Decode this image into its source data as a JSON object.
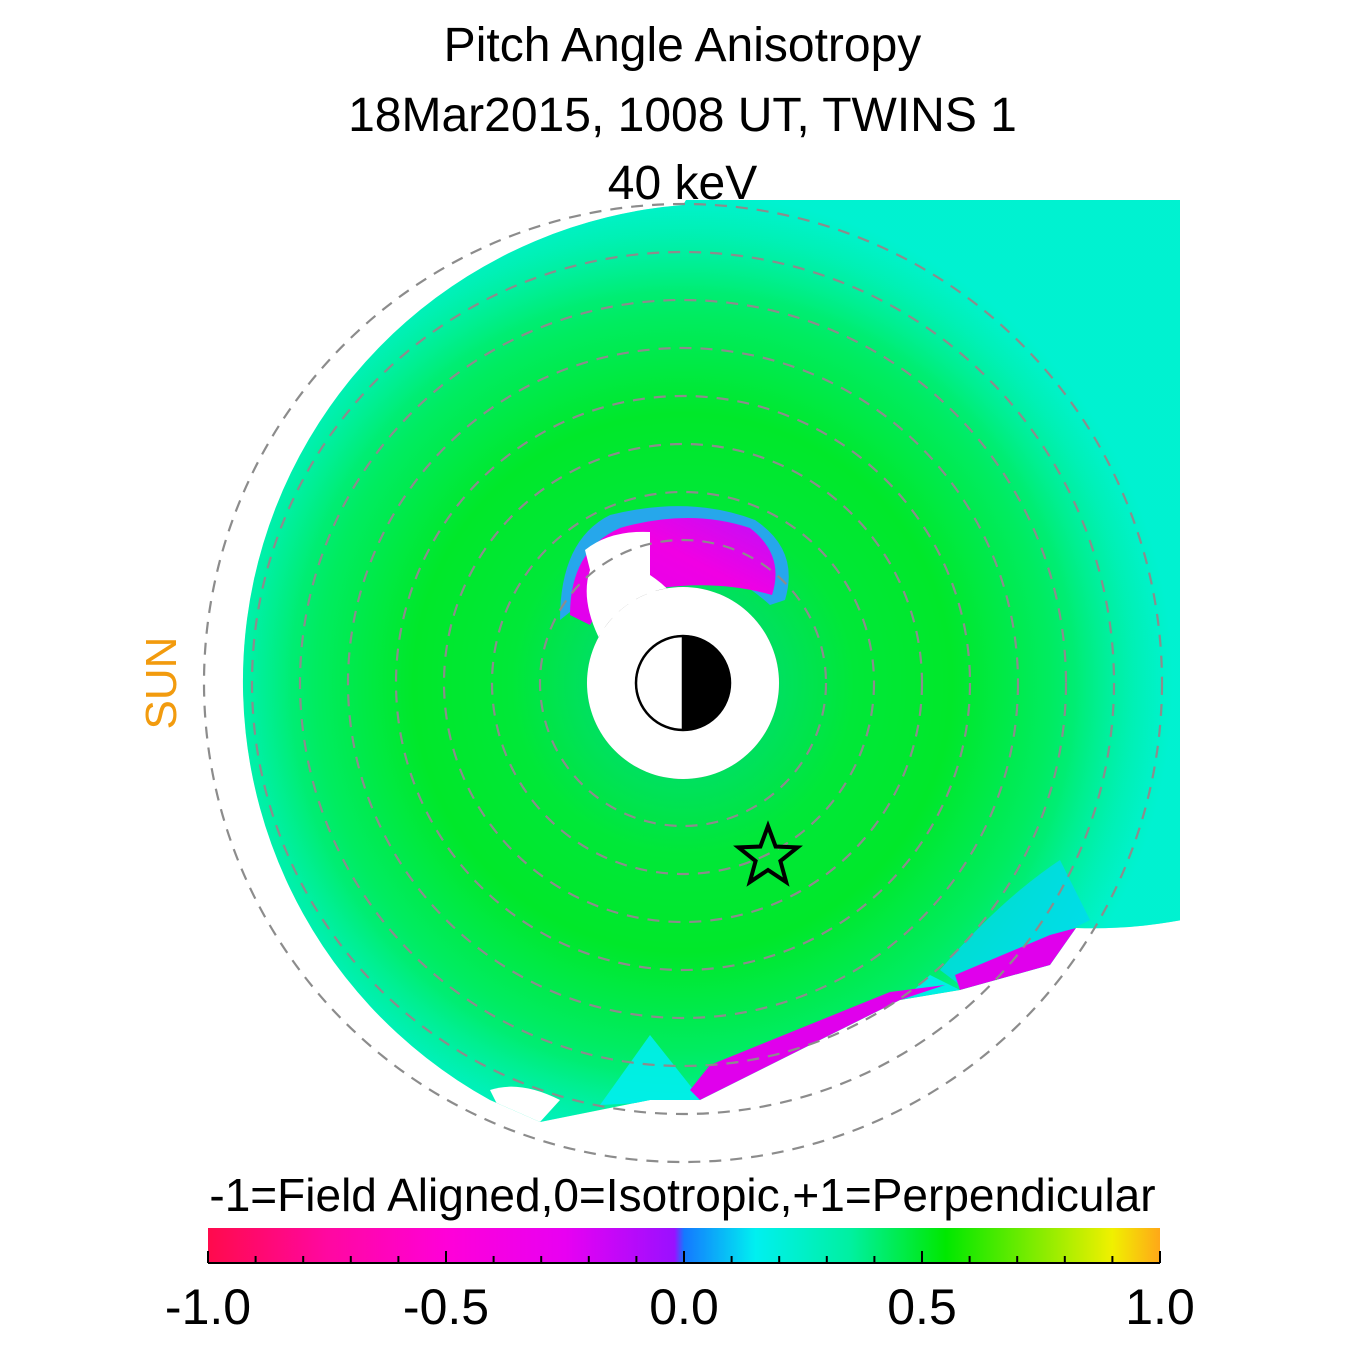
{
  "chart_data": {
    "type": "heatmap",
    "projection": "polar (equatorial plane), Sun to the left",
    "title": "Pitch Angle Anisotropy",
    "subtitle": "18Mar2015, 1008 UT,  TWINS 1",
    "energy_label": "40 keV",
    "sun_label": "SUN",
    "colorbar": {
      "title": "-1=Field Aligned,0=Isotropic,+1=Perpendicular",
      "range": [
        -1.0,
        1.0
      ],
      "tick_labels": [
        "-1.0",
        "-0.5",
        "0.0",
        "0.5",
        "1.0"
      ],
      "tick_values": [
        -1.0,
        -0.5,
        0.0,
        0.5,
        1.0
      ],
      "minor_step": 0.1,
      "color_stops": [
        {
          "value": -1.0,
          "color": "#ff0a4c"
        },
        {
          "value": -0.75,
          "color": "#ff08a0"
        },
        {
          "value": -0.5,
          "color": "#ff00d8"
        },
        {
          "value": -0.25,
          "color": "#e800f2"
        },
        {
          "value": -0.02,
          "color": "#9a10ff"
        },
        {
          "value": 0.0,
          "color": "#1478ff"
        },
        {
          "value": 0.15,
          "color": "#00f0f0"
        },
        {
          "value": 0.35,
          "color": "#00f0a0"
        },
        {
          "value": 0.55,
          "color": "#00e800"
        },
        {
          "value": 0.75,
          "color": "#88ec00"
        },
        {
          "value": 0.9,
          "color": "#f0f000"
        },
        {
          "value": 1.0,
          "color": "#ffa818"
        }
      ]
    },
    "regions": {
      "dominant_value": 0.4,
      "ring_current_peak_value": 0.55,
      "dayside_field_aligned_value": -0.2,
      "tail_field_aligned_value": -0.2,
      "boundary_value": 0.15
    },
    "markers": [
      "earth-symbol",
      "star-marker"
    ],
    "grid": "dashed circles",
    "colors": {
      "sun": "#f29b0e",
      "grid": "#8c8c8c",
      "background": "#ffffff"
    }
  }
}
